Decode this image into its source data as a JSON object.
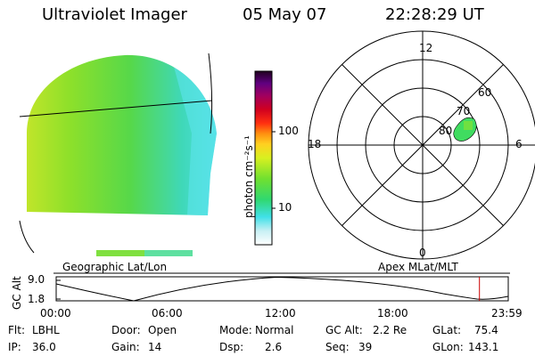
{
  "header": {
    "instrument": "Ultraviolet Imager",
    "date": "05 May 07",
    "time": "22:28:29 UT"
  },
  "colorbar": {
    "unit_label": "photon cm⁻²s⁻¹",
    "ticks": [
      {
        "label": "100",
        "value": 100
      },
      {
        "label": "10",
        "value": 10
      }
    ]
  },
  "polar_plot": {
    "mlt_labels": [
      "12",
      "18",
      "6",
      "0"
    ],
    "lat_labels": [
      "60",
      "70",
      "80"
    ]
  },
  "panel_labels": {
    "left": "Geographic Lat/Lon",
    "right": "Apex MLat/MLT"
  },
  "gc_alt_plot": {
    "ylabel": "GC Alt",
    "y_ticks": [
      "9.0",
      "1.8"
    ],
    "x_ticks": [
      "00:00",
      "06:00",
      "12:00",
      "18:00",
      "23:59"
    ],
    "current_time_marker_color": "#cc0000",
    "current_time_hours": 22.47
  },
  "status": {
    "flt_label": "Flt:",
    "flt_value": "LBHL",
    "ip_label": "IP:",
    "ip_value": "36.0",
    "door_label": "Door:",
    "door_value": "Open",
    "gain_label": "Gain:",
    "gain_value": "14",
    "mode_label": "Mode:",
    "mode_value": "Normal",
    "dsp_label": "Dsp:",
    "dsp_value": "2.6",
    "gcalt_label": "GC Alt:",
    "gcalt_value": "2.2 Re",
    "seq_label": "Seq:",
    "seq_value": "39",
    "glat_label": "GLat:",
    "glat_value": "75.4",
    "glon_label": "GLon:",
    "glon_value": "143.1"
  }
}
